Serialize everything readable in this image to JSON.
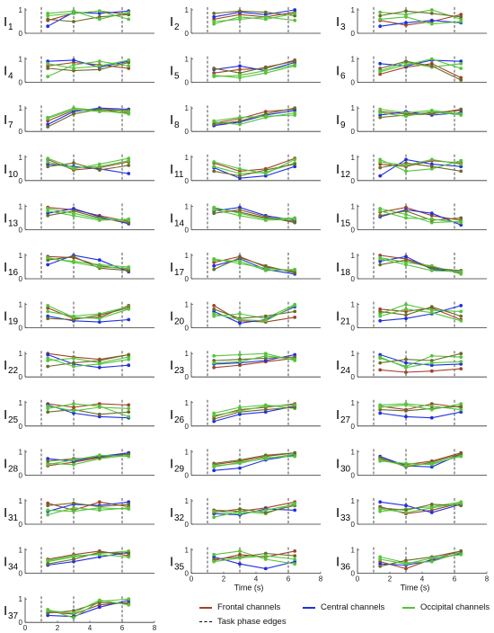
{
  "chart_data": {
    "type": "line",
    "panels": [
      {
        "label": "I",
        "sub": "1"
      },
      {
        "label": "I",
        "sub": "2"
      },
      {
        "label": "I",
        "sub": "3"
      },
      {
        "label": "I",
        "sub": "4"
      },
      {
        "label": "I",
        "sub": "5"
      },
      {
        "label": "I",
        "sub": "6"
      },
      {
        "label": "I",
        "sub": "7"
      },
      {
        "label": "I",
        "sub": "8"
      },
      {
        "label": "I",
        "sub": "9"
      },
      {
        "label": "I",
        "sub": "10"
      },
      {
        "label": "I",
        "sub": "11"
      },
      {
        "label": "I",
        "sub": "12"
      },
      {
        "label": "I",
        "sub": "13"
      },
      {
        "label": "I",
        "sub": "14"
      },
      {
        "label": "I",
        "sub": "15"
      },
      {
        "label": "I",
        "sub": "16"
      },
      {
        "label": "I",
        "sub": "17"
      },
      {
        "label": "I",
        "sub": "18"
      },
      {
        "label": "I",
        "sub": "19"
      },
      {
        "label": "I",
        "sub": "20"
      },
      {
        "label": "I",
        "sub": "21"
      },
      {
        "label": "I",
        "sub": "22"
      },
      {
        "label": "I",
        "sub": "23"
      },
      {
        "label": "I",
        "sub": "24"
      },
      {
        "label": "I",
        "sub": "25"
      },
      {
        "label": "I",
        "sub": "26"
      },
      {
        "label": "I",
        "sub": "27"
      },
      {
        "label": "I",
        "sub": "28"
      },
      {
        "label": "I",
        "sub": "29"
      },
      {
        "label": "I",
        "sub": "30"
      },
      {
        "label": "I",
        "sub": "31"
      },
      {
        "label": "I",
        "sub": "32"
      },
      {
        "label": "I",
        "sub": "33"
      },
      {
        "label": "I",
        "sub": "34"
      },
      {
        "label": "I",
        "sub": "35"
      },
      {
        "label": "I",
        "sub": "36"
      },
      {
        "label": "I",
        "sub": "37"
      }
    ],
    "x_points": [
      1.4,
      3.0,
      4.6,
      6.4
    ],
    "xlim": [
      0,
      8
    ],
    "ylim": [
      0,
      1
    ],
    "xticks": [
      0,
      2,
      4,
      6,
      8
    ],
    "yticks": [
      0,
      1
    ],
    "xlabel": "Time (s)",
    "phase_edges": [
      1,
      3,
      6
    ],
    "series_groups": [
      {
        "name": "Frontal channels",
        "color": "#a0432a"
      },
      {
        "name": "Central channels",
        "color": "#1f2fe0"
      },
      {
        "name": "Occipital channels",
        "color": "#55c43a"
      }
    ],
    "extra_color": "#6b6b2a",
    "phase_edge_label": "Task phase edges",
    "panel_lines": [
      [
        [
          0.55,
          0.85,
          0.95,
          0.8
        ],
        [
          0.3,
          0.9,
          0.85,
          0.95
        ],
        [
          0.75,
          0.85,
          0.95,
          0.6
        ],
        [
          0.6,
          0.5,
          0.7,
          0.8
        ],
        [
          0.85,
          0.95,
          0.6,
          0.9
        ]
      ],
      [
        [
          0.6,
          0.8,
          0.7,
          0.9
        ],
        [
          0.7,
          0.9,
          0.8,
          1.0
        ],
        [
          0.5,
          0.6,
          0.7,
          0.55
        ],
        [
          0.85,
          0.95,
          0.9,
          0.75
        ],
        [
          0.4,
          0.7,
          0.6,
          0.85
        ]
      ],
      [
        [
          0.55,
          0.35,
          0.5,
          0.8
        ],
        [
          0.3,
          0.45,
          0.55,
          0.45
        ],
        [
          0.9,
          0.8,
          1.0,
          0.6
        ],
        [
          0.75,
          0.95,
          0.85,
          0.7
        ],
        [
          0.6,
          0.7,
          0.4,
          0.5
        ]
      ],
      [
        [
          0.7,
          0.85,
          0.75,
          0.6
        ],
        [
          0.9,
          0.95,
          0.65,
          0.9
        ],
        [
          0.25,
          0.75,
          0.9,
          0.7
        ],
        [
          0.6,
          0.5,
          0.55,
          0.85
        ],
        [
          0.8,
          0.6,
          0.7,
          0.95
        ]
      ],
      [
        [
          0.4,
          0.55,
          0.6,
          0.95
        ],
        [
          0.55,
          0.7,
          0.5,
          0.85
        ],
        [
          0.3,
          0.2,
          0.4,
          0.7
        ],
        [
          0.6,
          0.4,
          0.65,
          0.9
        ],
        [
          0.25,
          0.3,
          0.5,
          0.75
        ]
      ],
      [
        [
          0.35,
          0.65,
          0.8,
          0.2
        ],
        [
          0.8,
          0.7,
          0.95,
          0.9
        ],
        [
          0.5,
          0.85,
          0.65,
          0.8
        ],
        [
          0.6,
          0.9,
          0.7,
          0.1
        ],
        [
          0.45,
          0.75,
          1.0,
          0.6
        ]
      ],
      [
        [
          0.45,
          0.9,
          0.95,
          0.8
        ],
        [
          0.3,
          0.85,
          1.0,
          0.95
        ],
        [
          0.6,
          1.0,
          0.9,
          0.75
        ],
        [
          0.2,
          0.75,
          0.95,
          0.9
        ],
        [
          0.55,
          0.95,
          0.85,
          0.85
        ]
      ],
      [
        [
          0.35,
          0.55,
          0.85,
          0.95
        ],
        [
          0.25,
          0.4,
          0.7,
          0.9
        ],
        [
          0.4,
          0.3,
          0.6,
          0.8
        ],
        [
          0.3,
          0.45,
          0.75,
          1.0
        ],
        [
          0.45,
          0.6,
          0.65,
          0.7
        ]
      ],
      [
        [
          0.85,
          0.75,
          0.8,
          0.9
        ],
        [
          0.7,
          0.85,
          0.7,
          0.8
        ],
        [
          0.95,
          0.8,
          0.9,
          0.75
        ],
        [
          0.6,
          0.7,
          0.75,
          0.95
        ],
        [
          0.8,
          0.65,
          0.85,
          0.7
        ]
      ],
      [
        [
          0.9,
          0.45,
          0.55,
          0.8
        ],
        [
          0.7,
          0.6,
          0.5,
          0.3
        ],
        [
          0.8,
          0.5,
          0.7,
          0.95
        ],
        [
          0.6,
          0.75,
          0.45,
          0.65
        ],
        [
          0.95,
          0.55,
          0.6,
          0.85
        ]
      ],
      [
        [
          0.75,
          0.4,
          0.5,
          0.95
        ],
        [
          0.55,
          0.1,
          0.2,
          0.6
        ],
        [
          0.6,
          0.3,
          0.35,
          0.75
        ],
        [
          0.4,
          0.2,
          0.45,
          0.7
        ],
        [
          0.8,
          0.5,
          0.3,
          0.9
        ]
      ],
      [
        [
          0.7,
          0.6,
          0.85,
          0.75
        ],
        [
          0.2,
          0.9,
          0.7,
          0.6
        ],
        [
          0.9,
          0.4,
          0.5,
          0.85
        ],
        [
          0.55,
          0.75,
          0.6,
          0.4
        ],
        [
          0.8,
          0.65,
          0.9,
          0.7
        ]
      ],
      [
        [
          0.95,
          0.85,
          0.6,
          0.35
        ],
        [
          0.7,
          0.9,
          0.55,
          0.25
        ],
        [
          0.8,
          0.6,
          0.4,
          0.45
        ],
        [
          0.6,
          0.8,
          0.5,
          0.3
        ],
        [
          0.9,
          0.7,
          0.45,
          0.4
        ]
      ],
      [
        [
          0.9,
          0.75,
          0.5,
          0.35
        ],
        [
          0.8,
          0.95,
          0.6,
          0.4
        ],
        [
          0.95,
          0.7,
          0.45,
          0.5
        ],
        [
          0.7,
          0.85,
          0.55,
          0.3
        ],
        [
          0.85,
          0.6,
          0.4,
          0.45
        ]
      ],
      [
        [
          0.75,
          0.95,
          0.6,
          0.4
        ],
        [
          0.55,
          0.85,
          0.7,
          0.2
        ],
        [
          0.9,
          0.65,
          0.3,
          0.35
        ],
        [
          0.6,
          0.8,
          0.4,
          0.5
        ],
        [
          0.8,
          0.5,
          0.45,
          0.3
        ]
      ],
      [
        [
          0.95,
          0.9,
          0.55,
          0.4
        ],
        [
          0.6,
          1.0,
          0.8,
          0.3
        ],
        [
          0.85,
          0.75,
          0.6,
          0.5
        ],
        [
          0.8,
          0.95,
          0.45,
          0.35
        ],
        [
          0.9,
          0.7,
          0.5,
          0.45
        ]
      ],
      [
        [
          0.7,
          0.95,
          0.5,
          0.3
        ],
        [
          0.55,
          0.85,
          0.4,
          0.2
        ],
        [
          0.85,
          0.65,
          0.45,
          0.35
        ],
        [
          0.4,
          0.9,
          0.55,
          0.25
        ],
        [
          0.8,
          0.75,
          0.35,
          0.4
        ]
      ],
      [
        [
          1.0,
          0.85,
          0.5,
          0.25
        ],
        [
          0.75,
          0.95,
          0.4,
          0.3
        ],
        [
          0.9,
          0.7,
          0.55,
          0.2
        ],
        [
          0.6,
          0.8,
          0.45,
          0.35
        ],
        [
          0.85,
          0.6,
          0.35,
          0.3
        ]
      ],
      [
        [
          0.85,
          0.4,
          0.45,
          0.95
        ],
        [
          0.5,
          0.3,
          0.25,
          0.35
        ],
        [
          0.7,
          0.5,
          0.6,
          0.9
        ],
        [
          0.4,
          0.35,
          0.55,
          0.85
        ],
        [
          0.95,
          0.45,
          0.4,
          0.8
        ]
      ],
      [
        [
          0.95,
          0.3,
          0.25,
          0.45
        ],
        [
          0.7,
          0.2,
          0.35,
          0.9
        ],
        [
          0.5,
          0.6,
          0.4,
          1.0
        ],
        [
          0.8,
          0.4,
          0.5,
          0.7
        ],
        [
          0.6,
          0.35,
          0.3,
          0.95
        ]
      ],
      [
        [
          0.8,
          0.7,
          0.85,
          0.35
        ],
        [
          0.3,
          0.4,
          0.6,
          0.95
        ],
        [
          0.6,
          1.0,
          0.75,
          0.7
        ],
        [
          0.7,
          0.55,
          0.9,
          0.5
        ],
        [
          0.5,
          0.8,
          0.65,
          0.3
        ]
      ],
      [
        [
          1.0,
          0.85,
          0.75,
          0.95
        ],
        [
          0.95,
          0.55,
          0.4,
          0.5
        ],
        [
          0.7,
          0.8,
          0.6,
          0.85
        ],
        [
          0.45,
          0.6,
          0.7,
          0.95
        ],
        [
          0.8,
          0.45,
          0.55,
          0.75
        ]
      ],
      [
        [
          0.4,
          0.5,
          0.65,
          0.8
        ],
        [
          0.55,
          0.6,
          0.7,
          0.95
        ],
        [
          0.9,
          0.95,
          1.0,
          0.7
        ],
        [
          0.7,
          0.75,
          0.8,
          0.85
        ],
        [
          0.6,
          0.65,
          0.9,
          0.75
        ]
      ],
      [
        [
          0.3,
          0.2,
          0.25,
          0.35
        ],
        [
          0.95,
          0.6,
          0.5,
          0.55
        ],
        [
          0.8,
          0.45,
          0.9,
          0.85
        ],
        [
          0.6,
          0.75,
          0.7,
          1.0
        ],
        [
          0.85,
          0.4,
          0.6,
          0.65
        ]
      ],
      [
        [
          0.95,
          0.8,
          0.95,
          0.9
        ],
        [
          0.9,
          0.55,
          0.4,
          0.35
        ],
        [
          0.75,
          0.95,
          0.85,
          0.4
        ],
        [
          0.6,
          0.7,
          0.5,
          0.6
        ],
        [
          0.85,
          0.65,
          0.8,
          0.75
        ]
      ],
      [
        [
          0.4,
          0.7,
          0.8,
          0.95
        ],
        [
          0.2,
          0.5,
          0.6,
          0.85
        ],
        [
          0.55,
          0.8,
          0.9,
          0.75
        ],
        [
          0.3,
          0.6,
          0.7,
          0.8
        ],
        [
          0.45,
          0.65,
          0.85,
          0.9
        ]
      ],
      [
        [
          0.85,
          0.7,
          0.95,
          0.8
        ],
        [
          0.55,
          0.4,
          0.35,
          0.6
        ],
        [
          0.9,
          0.95,
          0.85,
          0.7
        ],
        [
          0.7,
          0.65,
          0.75,
          0.85
        ],
        [
          0.8,
          0.9,
          0.7,
          0.95
        ]
      ],
      [
        [
          0.4,
          0.55,
          0.75,
          0.95
        ],
        [
          0.7,
          0.6,
          0.8,
          0.95
        ],
        [
          0.5,
          0.45,
          0.7,
          0.85
        ],
        [
          0.6,
          0.7,
          0.75,
          0.9
        ],
        [
          0.45,
          0.65,
          0.85,
          0.8
        ]
      ],
      [
        [
          0.45,
          0.6,
          0.8,
          0.95
        ],
        [
          0.2,
          0.3,
          0.65,
          0.85
        ],
        [
          0.35,
          0.55,
          0.7,
          0.9
        ],
        [
          0.5,
          0.65,
          0.85,
          0.95
        ],
        [
          0.4,
          0.5,
          0.75,
          0.8
        ]
      ],
      [
        [
          0.7,
          0.45,
          0.6,
          0.95
        ],
        [
          0.8,
          0.4,
          0.35,
          0.9
        ],
        [
          0.6,
          0.5,
          0.45,
          0.85
        ],
        [
          0.75,
          0.35,
          0.55,
          0.9
        ],
        [
          0.65,
          0.4,
          0.5,
          0.8
        ]
      ],
      [
        [
          0.9,
          0.6,
          0.95,
          0.75
        ],
        [
          0.55,
          0.85,
          0.8,
          0.95
        ],
        [
          0.4,
          0.7,
          0.6,
          0.7
        ],
        [
          0.8,
          0.9,
          0.75,
          0.85
        ],
        [
          0.6,
          0.55,
          0.7,
          0.65
        ]
      ],
      [
        [
          0.6,
          0.55,
          0.7,
          0.95
        ],
        [
          0.45,
          0.4,
          0.65,
          0.6
        ],
        [
          0.3,
          0.55,
          0.45,
          0.9
        ],
        [
          0.5,
          0.65,
          0.5,
          0.8
        ],
        [
          0.55,
          0.45,
          0.6,
          0.85
        ]
      ],
      [
        [
          0.75,
          0.45,
          0.6,
          0.9
        ],
        [
          0.95,
          0.8,
          0.5,
          0.85
        ],
        [
          0.55,
          0.65,
          0.75,
          0.95
        ],
        [
          0.7,
          0.6,
          0.85,
          0.8
        ],
        [
          0.65,
          0.5,
          0.7,
          0.9
        ]
      ],
      [
        [
          0.6,
          0.8,
          0.95,
          0.75
        ],
        [
          0.35,
          0.5,
          0.7,
          0.9
        ],
        [
          0.5,
          0.7,
          0.85,
          0.95
        ],
        [
          0.4,
          0.6,
          0.9,
          0.85
        ],
        [
          0.55,
          0.75,
          0.8,
          0.7
        ]
      ],
      [
        [
          0.55,
          0.8,
          0.7,
          0.95
        ],
        [
          0.7,
          0.4,
          0.2,
          0.5
        ],
        [
          0.8,
          0.95,
          0.6,
          0.4
        ],
        [
          0.6,
          0.7,
          0.85,
          0.75
        ],
        [
          0.5,
          0.65,
          0.75,
          0.6
        ]
      ],
      [
        [
          0.5,
          0.2,
          0.6,
          0.95
        ],
        [
          0.4,
          0.35,
          0.55,
          0.85
        ],
        [
          0.7,
          0.45,
          0.5,
          0.9
        ],
        [
          0.3,
          0.55,
          0.7,
          0.95
        ],
        [
          0.6,
          0.4,
          0.65,
          0.8
        ]
      ],
      [
        [
          0.45,
          0.35,
          0.75,
          0.85
        ],
        [
          0.3,
          0.25,
          0.65,
          0.95
        ],
        [
          0.55,
          0.2,
          0.9,
          1.0
        ],
        [
          0.4,
          0.5,
          0.85,
          0.8
        ],
        [
          0.5,
          0.4,
          0.95,
          0.75
        ]
      ]
    ],
    "panel_series_kinds": [
      "frontal",
      "central",
      "occipital",
      "extra",
      "occipital"
    ]
  }
}
